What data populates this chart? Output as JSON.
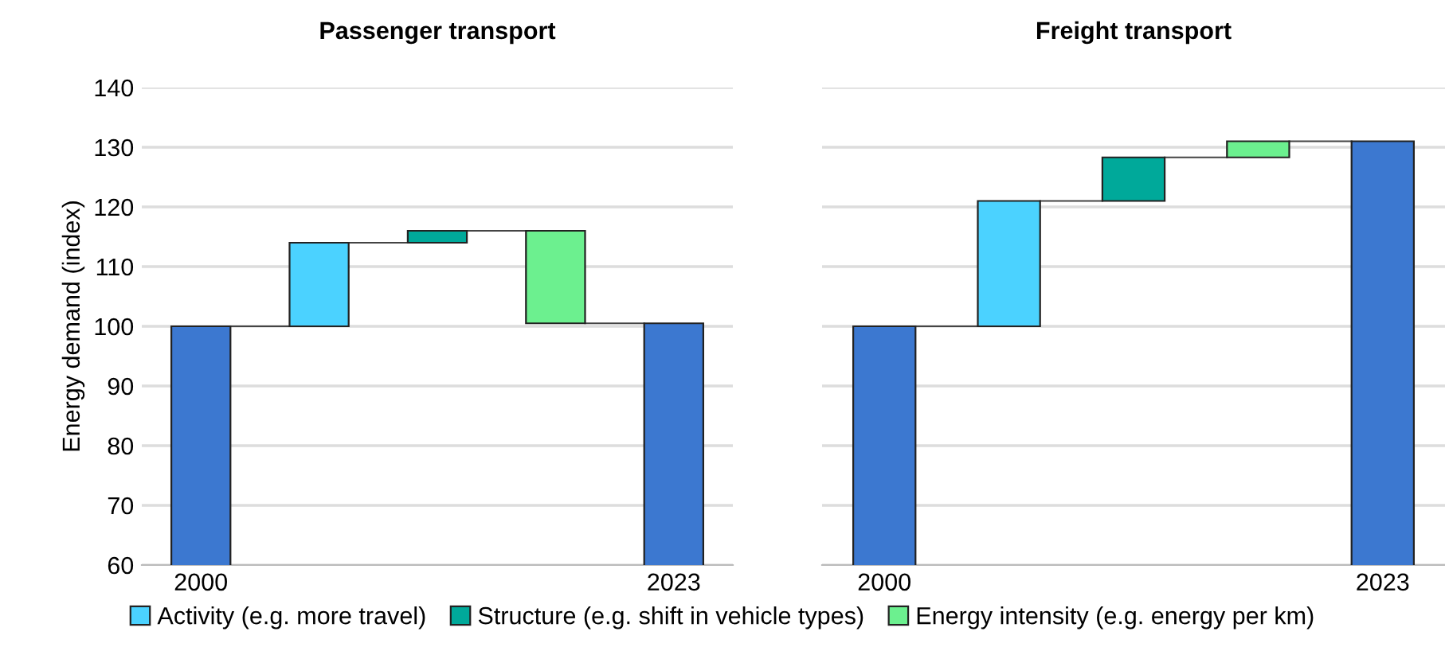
{
  "chart_data": [
    {
      "type": "bar",
      "title": "Passenger transport",
      "ylabel": "Energy demand (index)",
      "categories": [
        "2000",
        null,
        null,
        null,
        "2023"
      ],
      "ylim": [
        60,
        140
      ],
      "yticks": [
        60,
        70,
        80,
        90,
        100,
        110,
        120,
        130,
        140
      ],
      "grid": "y",
      "legend": "bottom",
      "series": [
        {
          "color": "#3c78d0",
          "values": [
            100,
            null,
            null,
            null,
            100.5
          ]
        },
        {
          "name": "Activity (e.g. more travel)",
          "color": "#4bd2ff",
          "values": [
            null,
            14,
            null,
            null,
            null
          ],
          "base": [
            null,
            100,
            null,
            null,
            null
          ]
        },
        {
          "name": "Structure (e.g. shift in vehicle types)",
          "color": "#00a99a",
          "values": [
            null,
            null,
            2,
            null,
            null
          ],
          "base": [
            null,
            null,
            114,
            null,
            null
          ]
        },
        {
          "name": "Energy intensity (e.g. energy per km)",
          "color": "#6cf08f",
          "values": [
            null,
            null,
            null,
            -15.5,
            null
          ],
          "base": [
            null,
            null,
            null,
            116,
            null
          ]
        }
      ]
    },
    {
      "type": "bar",
      "title": "Freight transport",
      "categories": [
        "2000",
        null,
        null,
        null,
        "2023"
      ],
      "ylim": [
        60,
        140
      ],
      "yticks": [
        60,
        70,
        80,
        90,
        100,
        110,
        120,
        130,
        140
      ],
      "grid": "y",
      "tick_labels": "x",
      "series": [
        {
          "color": "#3c78d0",
          "values": [
            100,
            null,
            null,
            null,
            131
          ]
        },
        {
          "color": "#4bd2ff",
          "values": [
            null,
            21,
            null,
            null,
            null
          ],
          "base": [
            null,
            100,
            null,
            null,
            null
          ]
        },
        {
          "color": "#00a99a",
          "values": [
            null,
            null,
            7.3,
            null,
            null
          ],
          "base": [
            null,
            null,
            121,
            null,
            null
          ]
        },
        {
          "color": "#6cf08f",
          "values": [
            null,
            null,
            null,
            2.7,
            null
          ],
          "base": [
            null,
            null,
            null,
            128.3,
            null
          ]
        }
      ]
    }
  ]
}
